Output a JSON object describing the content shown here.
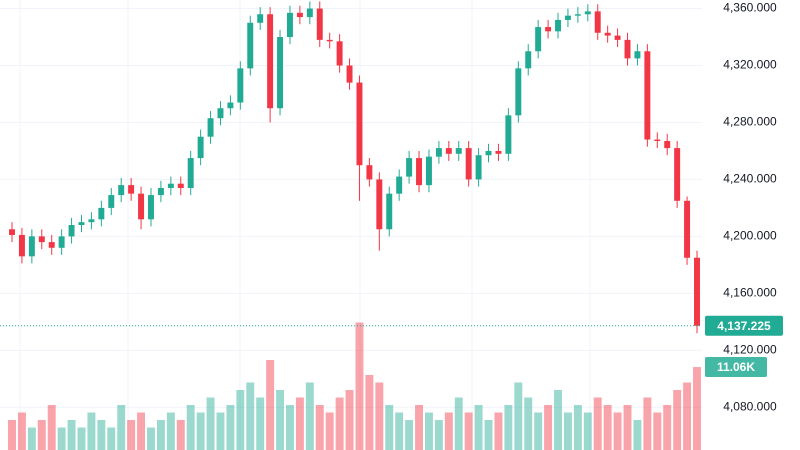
{
  "chart_data": {
    "type": "candlestick",
    "up_color": "#22ab94",
    "down_color": "#f23645",
    "grid": true,
    "ylim": [
      4050,
      4366
    ],
    "yticks": [
      {
        "value": 4080,
        "label": "4,080.000"
      },
      {
        "value": 4120,
        "label": "4,120.000"
      },
      {
        "value": 4160,
        "label": "4,160.000"
      },
      {
        "value": 4200,
        "label": "4,200.000"
      },
      {
        "value": 4240,
        "label": "4,240.000"
      },
      {
        "value": 4280,
        "label": "4,280.000"
      },
      {
        "value": 4320,
        "label": "4,320.000"
      },
      {
        "value": 4360,
        "label": "4,360.000"
      }
    ],
    "open": [
      4205,
      4201,
      4186,
      4200,
      4196,
      4192,
      4200,
      4208,
      4210,
      4212,
      4220,
      4229,
      4236,
      4230,
      4212,
      4229,
      4234,
      4237,
      4234,
      4255,
      4270,
      4283,
      4290,
      4294,
      4318,
      4350,
      4356,
      4290,
      4340,
      4357,
      4354,
      4360,
      4338,
      4337,
      4320,
      4308,
      4250,
      4240,
      4205,
      4230,
      4242,
      4255,
      4236,
      4256,
      4262,
      4258,
      4262,
      4240,
      4257,
      4260,
      4258,
      4285,
      4318,
      4330,
      4347,
      4344,
      4352,
      4355,
      4356,
      4358,
      4343,
      4341,
      4338,
      4325,
      4330,
      4268,
      4267,
      4262,
      4225,
      4185
    ],
    "high": [
      4210,
      4206,
      4205,
      4205,
      4201,
      4205,
      4213,
      4215,
      4217,
      4225,
      4234,
      4241,
      4241,
      4235,
      4234,
      4239,
      4242,
      4242,
      4260,
      4275,
      4288,
      4295,
      4299,
      4323,
      4355,
      4361,
      4361,
      4345,
      4362,
      4362,
      4365,
      4365,
      4343,
      4342,
      4325,
      4313,
      4255,
      4245,
      4235,
      4247,
      4260,
      4260,
      4261,
      4267,
      4267,
      4267,
      4267,
      4262,
      4265,
      4265,
      4290,
      4323,
      4335,
      4352,
      4352,
      4357,
      4360,
      4361,
      4363,
      4363,
      4348,
      4346,
      4343,
      4335,
      4335,
      4273,
      4272,
      4267,
      4228,
      4190
    ],
    "low": [
      4196,
      4181,
      4181,
      4191,
      4187,
      4187,
      4195,
      4203,
      4205,
      4207,
      4215,
      4224,
      4225,
      4205,
      4207,
      4224,
      4229,
      4229,
      4229,
      4250,
      4265,
      4278,
      4285,
      4289,
      4313,
      4345,
      4280,
      4285,
      4335,
      4349,
      4349,
      4333,
      4332,
      4315,
      4303,
      4225,
      4235,
      4190,
      4200,
      4225,
      4237,
      4231,
      4231,
      4251,
      4253,
      4253,
      4235,
      4235,
      4252,
      4253,
      4253,
      4280,
      4313,
      4325,
      4339,
      4339,
      4347,
      4350,
      4351,
      4338,
      4336,
      4333,
      4320,
      4320,
      4263,
      4262,
      4257,
      4220,
      4180,
      4132
    ],
    "close": [
      4201,
      4186,
      4200,
      4196,
      4192,
      4200,
      4208,
      4210,
      4212,
      4220,
      4229,
      4236,
      4230,
      4212,
      4229,
      4234,
      4237,
      4234,
      4255,
      4270,
      4283,
      4290,
      4294,
      4318,
      4350,
      4356,
      4290,
      4340,
      4357,
      4354,
      4360,
      4338,
      4337,
      4320,
      4308,
      4250,
      4240,
      4205,
      4230,
      4242,
      4255,
      4236,
      4256,
      4262,
      4258,
      4262,
      4240,
      4257,
      4260,
      4258,
      4285,
      4318,
      4330,
      4347,
      4344,
      4352,
      4355,
      4356,
      4358,
      4343,
      4341,
      4338,
      4325,
      4330,
      4268,
      4267,
      4262,
      4225,
      4185,
      4137.225
    ],
    "volume": [
      4,
      5,
      3,
      4,
      6,
      3,
      4,
      3,
      5,
      4,
      3,
      6,
      4,
      5,
      3,
      4,
      5,
      4,
      6,
      5,
      7,
      5,
      6,
      8,
      9,
      7,
      12,
      8,
      6,
      7,
      9,
      6,
      5,
      7,
      8,
      17,
      10,
      9,
      6,
      5,
      4,
      6,
      5,
      4,
      5,
      7,
      5,
      6,
      4,
      5,
      6,
      9,
      7,
      5,
      6,
      8,
      5,
      6,
      5,
      7,
      6,
      5,
      6,
      4,
      7,
      5,
      6,
      8,
      9,
      11.06
    ],
    "last_price": {
      "value": 4137.225,
      "label": "4,137.225"
    },
    "last_volume": {
      "value": 11.06,
      "label": "11.06K"
    }
  }
}
